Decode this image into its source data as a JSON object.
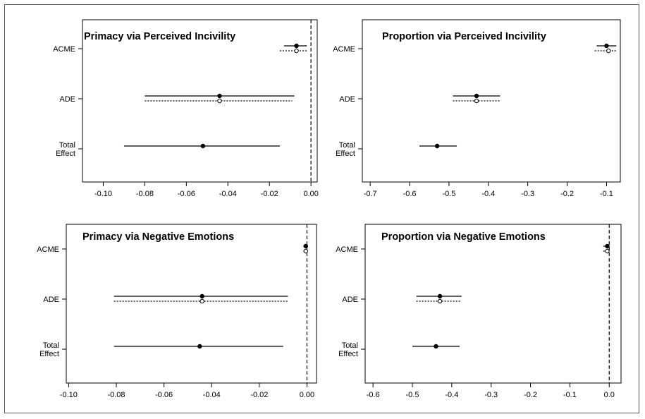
{
  "chart_data": [
    {
      "type": "forest",
      "title": "Primacy via Perceived Incivility",
      "categories": [
        "ACME",
        "ADE",
        "Total Effect"
      ],
      "xlim": [
        -0.11,
        0.003
      ],
      "xticks": [
        "-0.10",
        "-0.08",
        "-0.06",
        "-0.04",
        "-0.02",
        "0.00"
      ],
      "reference_line": 0,
      "series": [
        {
          "style": "solid",
          "marker": "filled",
          "estimates": [
            -0.007,
            -0.044,
            -0.052
          ],
          "lower": [
            -0.013,
            -0.08,
            -0.09
          ],
          "upper": [
            -0.002,
            -0.008,
            -0.015
          ]
        },
        {
          "style": "dotted",
          "marker": "open",
          "estimates": [
            -0.007,
            -0.044,
            null
          ],
          "lower": [
            -0.015,
            -0.08,
            null
          ],
          "upper": [
            -0.002,
            -0.009,
            null
          ]
        }
      ]
    },
    {
      "type": "forest",
      "title": "Proportion via Perceived Incivility",
      "categories": [
        "ACME",
        "ADE",
        "Total Effect"
      ],
      "xlim": [
        -0.72,
        -0.065
      ],
      "xticks": [
        "-0.7",
        "-0.6",
        "-0.5",
        "-0.4",
        "-0.3",
        "-0.2",
        "-0.1"
      ],
      "reference_line": null,
      "series": [
        {
          "style": "solid",
          "marker": "filled",
          "estimates": [
            -0.1,
            -0.43,
            -0.53
          ],
          "lower": [
            -0.125,
            -0.49,
            -0.575
          ],
          "upper": [
            -0.075,
            -0.37,
            -0.48
          ]
        },
        {
          "style": "dotted",
          "marker": "open",
          "estimates": [
            -0.095,
            -0.43,
            null
          ],
          "lower": [
            -0.13,
            -0.49,
            null
          ],
          "upper": [
            -0.075,
            -0.37,
            null
          ]
        }
      ]
    },
    {
      "type": "forest",
      "title": "Primacy via Negative Emotions",
      "categories": [
        "ACME",
        "ADE",
        "Total Effect"
      ],
      "xlim": [
        -0.101,
        0.004
      ],
      "xticks": [
        "-0.10",
        "-0.08",
        "-0.06",
        "-0.04",
        "-0.02",
        "0.00"
      ],
      "reference_line": 0,
      "series": [
        {
          "style": "solid",
          "marker": "filled",
          "estimates": [
            -0.0005,
            -0.044,
            -0.045
          ],
          "lower": [
            -0.0015,
            -0.081,
            -0.081
          ],
          "upper": [
            0.0,
            -0.008,
            -0.01
          ]
        },
        {
          "style": "dotted",
          "marker": "open",
          "estimates": [
            -0.0005,
            -0.044,
            null
          ],
          "lower": [
            -0.0015,
            -0.081,
            null
          ],
          "upper": [
            0.0,
            -0.008,
            null
          ]
        }
      ]
    },
    {
      "type": "forest",
      "title": "Proportion via Negative Emotions",
      "categories": [
        "ACME",
        "ADE",
        "Total Effect"
      ],
      "xlim": [
        -0.62,
        0.03
      ],
      "xticks": [
        "-0.6",
        "-0.5",
        "-0.4",
        "-0.3",
        "-0.2",
        "-0.1",
        "0.0"
      ],
      "reference_line": 0,
      "series": [
        {
          "style": "solid",
          "marker": "filled",
          "estimates": [
            -0.005,
            -0.43,
            -0.44
          ],
          "lower": [
            -0.015,
            -0.49,
            -0.5
          ],
          "upper": [
            0.0,
            -0.375,
            -0.38
          ]
        },
        {
          "style": "dotted",
          "marker": "open",
          "estimates": [
            -0.005,
            -0.43,
            null
          ],
          "lower": [
            -0.015,
            -0.49,
            null
          ],
          "upper": [
            0.0,
            -0.375,
            null
          ]
        }
      ]
    }
  ]
}
